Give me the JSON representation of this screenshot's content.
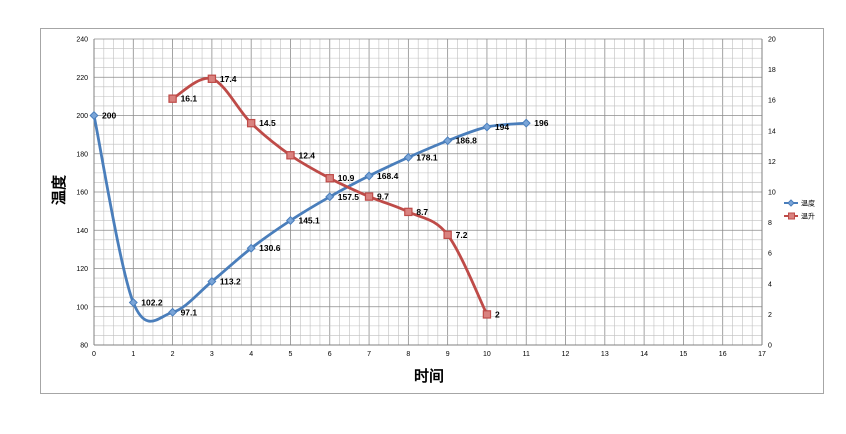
{
  "chart_data": {
    "type": "line",
    "xlabel": "时间",
    "ylabel": "温度",
    "xlim": [
      0,
      17
    ],
    "x_ticks": [
      "0",
      "1",
      "2",
      "3",
      "4",
      "5",
      "6",
      "7",
      "8",
      "9",
      "10",
      "11",
      "12",
      "13",
      "14",
      "15",
      "16",
      "17"
    ],
    "ylim": [
      80,
      240
    ],
    "y_ticks": [
      "80",
      "100",
      "120",
      "140",
      "160",
      "180",
      "200",
      "220",
      "240"
    ],
    "y2lim": [
      0,
      20
    ],
    "y2_ticks": [
      "0",
      "2",
      "4",
      "6",
      "8",
      "10",
      "12",
      "14",
      "16",
      "18",
      "20"
    ],
    "grid": true,
    "legend_position": "right",
    "series": [
      {
        "name": "温度",
        "axis": "left",
        "color": "#4a7ebb",
        "marker": "diamond",
        "smooth": true,
        "x": [
          0,
          1,
          2,
          3,
          4,
          5,
          6,
          7,
          8,
          9,
          10,
          11
        ],
        "values": [
          200,
          102.2,
          97.1,
          113.2,
          130.6,
          145.1,
          157.5,
          168.4,
          178.1,
          186.8,
          194,
          196
        ],
        "labels": [
          "200",
          "102.2",
          "97.1",
          "113.2",
          "130.6",
          "145.1",
          "157.5",
          "168.4",
          "178.1",
          "186.8",
          "194",
          "196"
        ]
      },
      {
        "name": "温升",
        "axis": "right",
        "color": "#be4b48",
        "marker": "square",
        "smooth": true,
        "x": [
          2,
          3,
          4,
          5,
          6,
          7,
          8,
          9,
          10
        ],
        "values": [
          16.1,
          17.4,
          14.5,
          12.4,
          10.9,
          9.7,
          8.7,
          7.2,
          2
        ],
        "labels": [
          "16.1",
          "17.4",
          "14.5",
          "12.4",
          "10.9",
          "9.7",
          "8.7",
          "7.2",
          "2"
        ]
      }
    ]
  }
}
